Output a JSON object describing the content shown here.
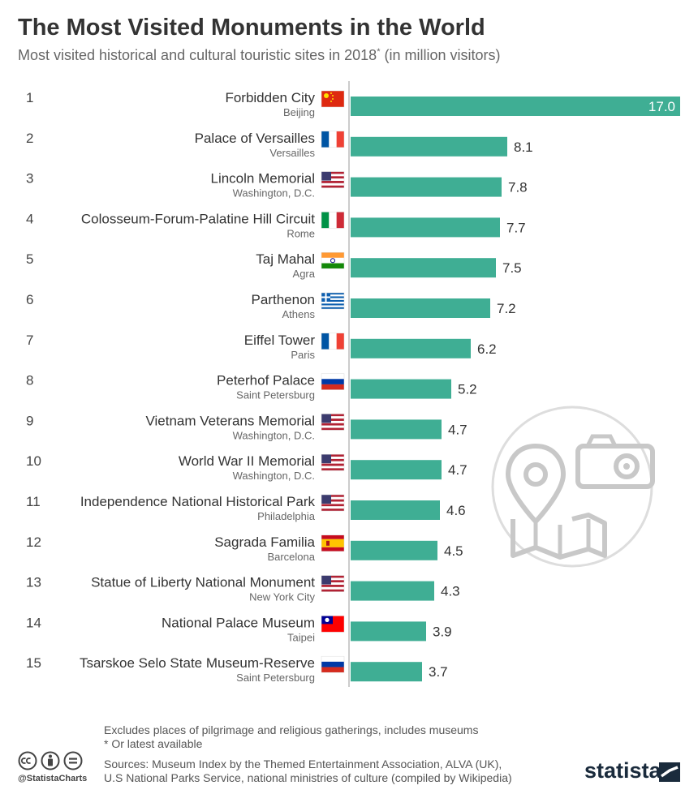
{
  "title": "The Most Visited Monuments in the World",
  "subtitle": "Most visited historical and cultural touristic sites in 2018",
  "subtitle_mark": "*",
  "subtitle_unit": " (in million visitors)",
  "colors": {
    "bar": "#3fae94",
    "title": "#333333",
    "axis": "#bbbbbb"
  },
  "chart_data": {
    "type": "bar",
    "orientation": "horizontal",
    "title": "The Most Visited Monuments in the World",
    "unit": "million visitors",
    "xlim": [
      0,
      17
    ],
    "grid": false,
    "items": [
      {
        "rank": "1",
        "name": "Forbidden City",
        "city": "Beijing",
        "flag": "china-flag-icon",
        "value": 17.0
      },
      {
        "rank": "2",
        "name": "Palace of Versailles",
        "city": "Versailles",
        "flag": "france-flag-icon",
        "value": 8.1
      },
      {
        "rank": "3",
        "name": "Lincoln Memorial",
        "city": "Washington, D.C.",
        "flag": "usa-flag-icon",
        "value": 7.8
      },
      {
        "rank": "4",
        "name": "Colosseum-Forum-Palatine Hill Circuit",
        "city": "Rome",
        "flag": "italy-flag-icon",
        "value": 7.7
      },
      {
        "rank": "5",
        "name": "Taj Mahal",
        "city": "Agra",
        "flag": "india-flag-icon",
        "value": 7.5
      },
      {
        "rank": "6",
        "name": "Parthenon",
        "city": "Athens",
        "flag": "greece-flag-icon",
        "value": 7.2
      },
      {
        "rank": "7",
        "name": "Eiffel Tower",
        "city": "Paris",
        "flag": "france-flag-icon",
        "value": 6.2
      },
      {
        "rank": "8",
        "name": "Peterhof Palace",
        "city": "Saint Petersburg",
        "flag": "russia-flag-icon",
        "value": 5.2
      },
      {
        "rank": "9",
        "name": "Vietnam Veterans Memorial",
        "city": "Washington, D.C.",
        "flag": "usa-flag-icon",
        "value": 4.7
      },
      {
        "rank": "10",
        "name": "World War II Memorial",
        "city": "Washington, D.C.",
        "flag": "usa-flag-icon",
        "value": 4.7
      },
      {
        "rank": "11",
        "name": "Independence National Historical Park",
        "city": "Philadelphia",
        "flag": "usa-flag-icon",
        "value": 4.6
      },
      {
        "rank": "12",
        "name": "Sagrada Familia",
        "city": "Barcelona",
        "flag": "spain-flag-icon",
        "value": 4.5
      },
      {
        "rank": "13",
        "name": "Statue of Liberty National Monument",
        "city": "New York City",
        "flag": "usa-flag-icon",
        "value": 4.3
      },
      {
        "rank": "14",
        "name": "National Palace Museum",
        "city": "Taipei",
        "flag": "taiwan-flag-icon",
        "value": 3.9
      },
      {
        "rank": "15",
        "name": "Tsarskoe Selo State Museum-Reserve",
        "city": "Saint Petersburg",
        "flag": "russia-flag-icon",
        "value": 3.7
      }
    ]
  },
  "footnotes": {
    "note1": "Excludes places of pilgrimage and religious gatherings, includes museums",
    "note2": "* Or latest available",
    "sources1": "Sources: Museum Index by the Themed Entertainment Association, ALVA (UK),",
    "sources2": "U.S National Parks Service, national ministries of culture (compiled by Wikipedia)"
  },
  "branding": {
    "handle": "@StatistaCharts",
    "logo": "statista"
  },
  "illustration_icon": "travel-map-camera-icon"
}
